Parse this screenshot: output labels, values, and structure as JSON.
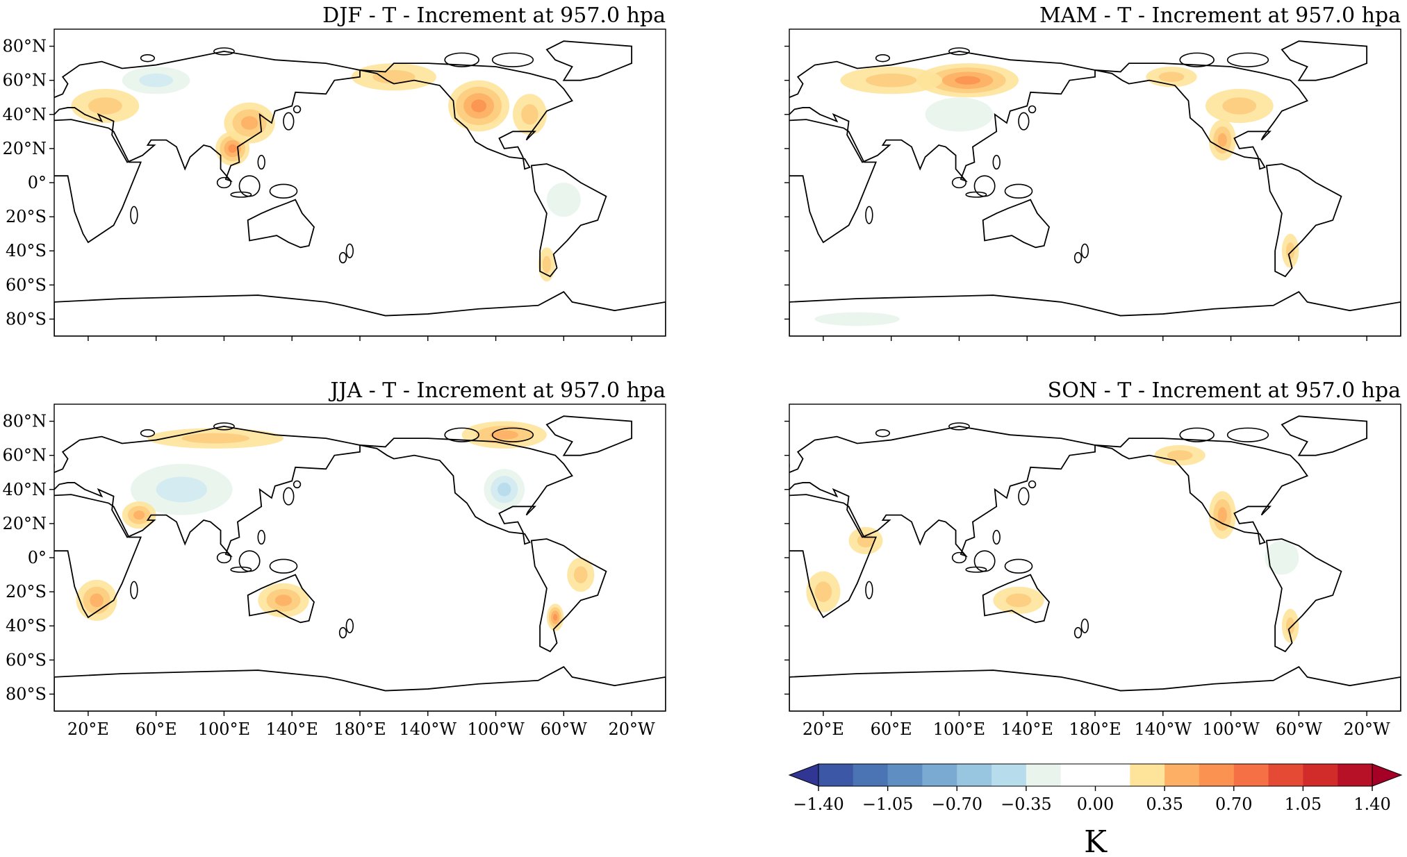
{
  "chart_data": {
    "type": "heatmap",
    "panels": [
      {
        "title": "DJF - T - Increment at 957.0 hpa",
        "hotspots": [
          {
            "lon": 257,
            "lat": 40,
            "value": 1.2,
            "rx": 6,
            "ry": 5
          },
          {
            "lon": 250,
            "lat": 45,
            "value": 0.55,
            "rx": 18,
            "ry": 15
          },
          {
            "lon": 280,
            "lat": 40,
            "value": 0.35,
            "rx": 10,
            "ry": 12
          },
          {
            "lon": 105,
            "lat": 20,
            "value": 0.7,
            "rx": 10,
            "ry": 10
          },
          {
            "lon": 115,
            "lat": 35,
            "value": 0.4,
            "rx": 15,
            "ry": 12
          },
          {
            "lon": 200,
            "lat": 62,
            "value": 0.35,
            "rx": 25,
            "ry": 8
          },
          {
            "lon": 30,
            "lat": 45,
            "value": 0.3,
            "rx": 20,
            "ry": 10
          },
          {
            "lon": 290,
            "lat": -48,
            "value": 0.35,
            "rx": 5,
            "ry": 10
          },
          {
            "lon": 60,
            "lat": 60,
            "value": -0.2,
            "rx": 20,
            "ry": 8
          },
          {
            "lon": 300,
            "lat": -10,
            "value": -0.15,
            "rx": 10,
            "ry": 10
          }
        ]
      },
      {
        "title": "MAM - T - Increment at 957.0 hpa",
        "hotspots": [
          {
            "lon": 105,
            "lat": 60,
            "value": 0.6,
            "rx": 30,
            "ry": 10
          },
          {
            "lon": 60,
            "lat": 60,
            "value": 0.3,
            "rx": 30,
            "ry": 8
          },
          {
            "lon": 255,
            "lat": 25,
            "value": 0.45,
            "rx": 8,
            "ry": 12
          },
          {
            "lon": 265,
            "lat": 45,
            "value": 0.3,
            "rx": 20,
            "ry": 10
          },
          {
            "lon": 225,
            "lat": 62,
            "value": 0.3,
            "rx": 15,
            "ry": 6
          },
          {
            "lon": 295,
            "lat": -40,
            "value": 0.35,
            "rx": 5,
            "ry": 10
          },
          {
            "lon": 100,
            "lat": 40,
            "value": -0.15,
            "rx": 20,
            "ry": 10
          },
          {
            "lon": 40,
            "lat": -80,
            "value": -0.15,
            "rx": 25,
            "ry": 4
          }
        ]
      },
      {
        "title": "JJA - T - Increment at 957.0 hpa",
        "hotspots": [
          {
            "lon": 265,
            "lat": 40,
            "value": -0.45,
            "rx": 12,
            "ry": 12
          },
          {
            "lon": 75,
            "lat": 40,
            "value": -0.25,
            "rx": 30,
            "ry": 15
          },
          {
            "lon": 25,
            "lat": -25,
            "value": 0.4,
            "rx": 12,
            "ry": 12
          },
          {
            "lon": 295,
            "lat": -35,
            "value": 0.55,
            "rx": 5,
            "ry": 8
          },
          {
            "lon": 310,
            "lat": -10,
            "value": 0.35,
            "rx": 8,
            "ry": 10
          },
          {
            "lon": 135,
            "lat": -25,
            "value": 0.4,
            "rx": 15,
            "ry": 10
          },
          {
            "lon": 50,
            "lat": 25,
            "value": 0.45,
            "rx": 10,
            "ry": 8
          },
          {
            "lon": 265,
            "lat": 72,
            "value": 0.4,
            "rx": 25,
            "ry": 8
          },
          {
            "lon": 95,
            "lat": 70,
            "value": 0.3,
            "rx": 40,
            "ry": 6
          }
        ]
      },
      {
        "title": "SON - T - Increment at 957.0 hpa",
        "hotspots": [
          {
            "lon": 255,
            "lat": 25,
            "value": 0.45,
            "rx": 8,
            "ry": 14
          },
          {
            "lon": 230,
            "lat": 60,
            "value": 0.35,
            "rx": 15,
            "ry": 6
          },
          {
            "lon": 135,
            "lat": -25,
            "value": 0.35,
            "rx": 15,
            "ry": 8
          },
          {
            "lon": 20,
            "lat": -20,
            "value": 0.35,
            "rx": 10,
            "ry": 12
          },
          {
            "lon": 45,
            "lat": 10,
            "value": 0.3,
            "rx": 10,
            "ry": 8
          },
          {
            "lon": 295,
            "lat": -40,
            "value": 0.35,
            "rx": 5,
            "ry": 10
          },
          {
            "lon": 290,
            "lat": 0,
            "value": -0.15,
            "rx": 10,
            "ry": 10
          }
        ]
      }
    ],
    "x_ticks": [
      "20°E",
      "60°E",
      "100°E",
      "140°E",
      "180°E",
      "140°W",
      "100°W",
      "60°W",
      "20°W"
    ],
    "x_tick_lons": [
      20,
      60,
      100,
      140,
      180,
      220,
      260,
      300,
      340
    ],
    "y_ticks": [
      "80°N",
      "60°N",
      "40°N",
      "20°N",
      "0°",
      "20°S",
      "40°S",
      "60°S",
      "80°S"
    ],
    "y_tick_lats": [
      80,
      60,
      40,
      20,
      0,
      -20,
      -40,
      -60,
      -80
    ],
    "xlim": [
      0,
      360
    ],
    "ylim": [
      -90,
      90
    ],
    "colorbar": {
      "levels": [
        -1.4,
        -1.225,
        -1.05,
        -0.875,
        -0.7,
        -0.525,
        -0.35,
        -0.175,
        0,
        0.175,
        0.35,
        0.525,
        0.7,
        0.875,
        1.05,
        1.225,
        1.4
      ],
      "ticks": [
        "−1.40",
        "−1.05",
        "−0.70",
        "−0.35",
        "0.00",
        "0.35",
        "0.70",
        "1.05",
        "1.40"
      ],
      "tick_values": [
        -1.4,
        -1.05,
        -0.7,
        -0.35,
        0,
        0.35,
        0.7,
        1.05,
        1.4
      ],
      "label": "K",
      "colors": [
        "#313695",
        "#3b57a6",
        "#4a74b4",
        "#5f8fc2",
        "#7aaad2",
        "#98c5e0",
        "#b7dcec",
        "#d2ebf1",
        "#e8f4ec",
        "#ffffff",
        "#fee39a",
        "#fdcc7e",
        "#fdb065",
        "#fb9251",
        "#f57044",
        "#e54a34",
        "#d12b2a",
        "#b71127",
        "#a50026"
      ]
    }
  }
}
